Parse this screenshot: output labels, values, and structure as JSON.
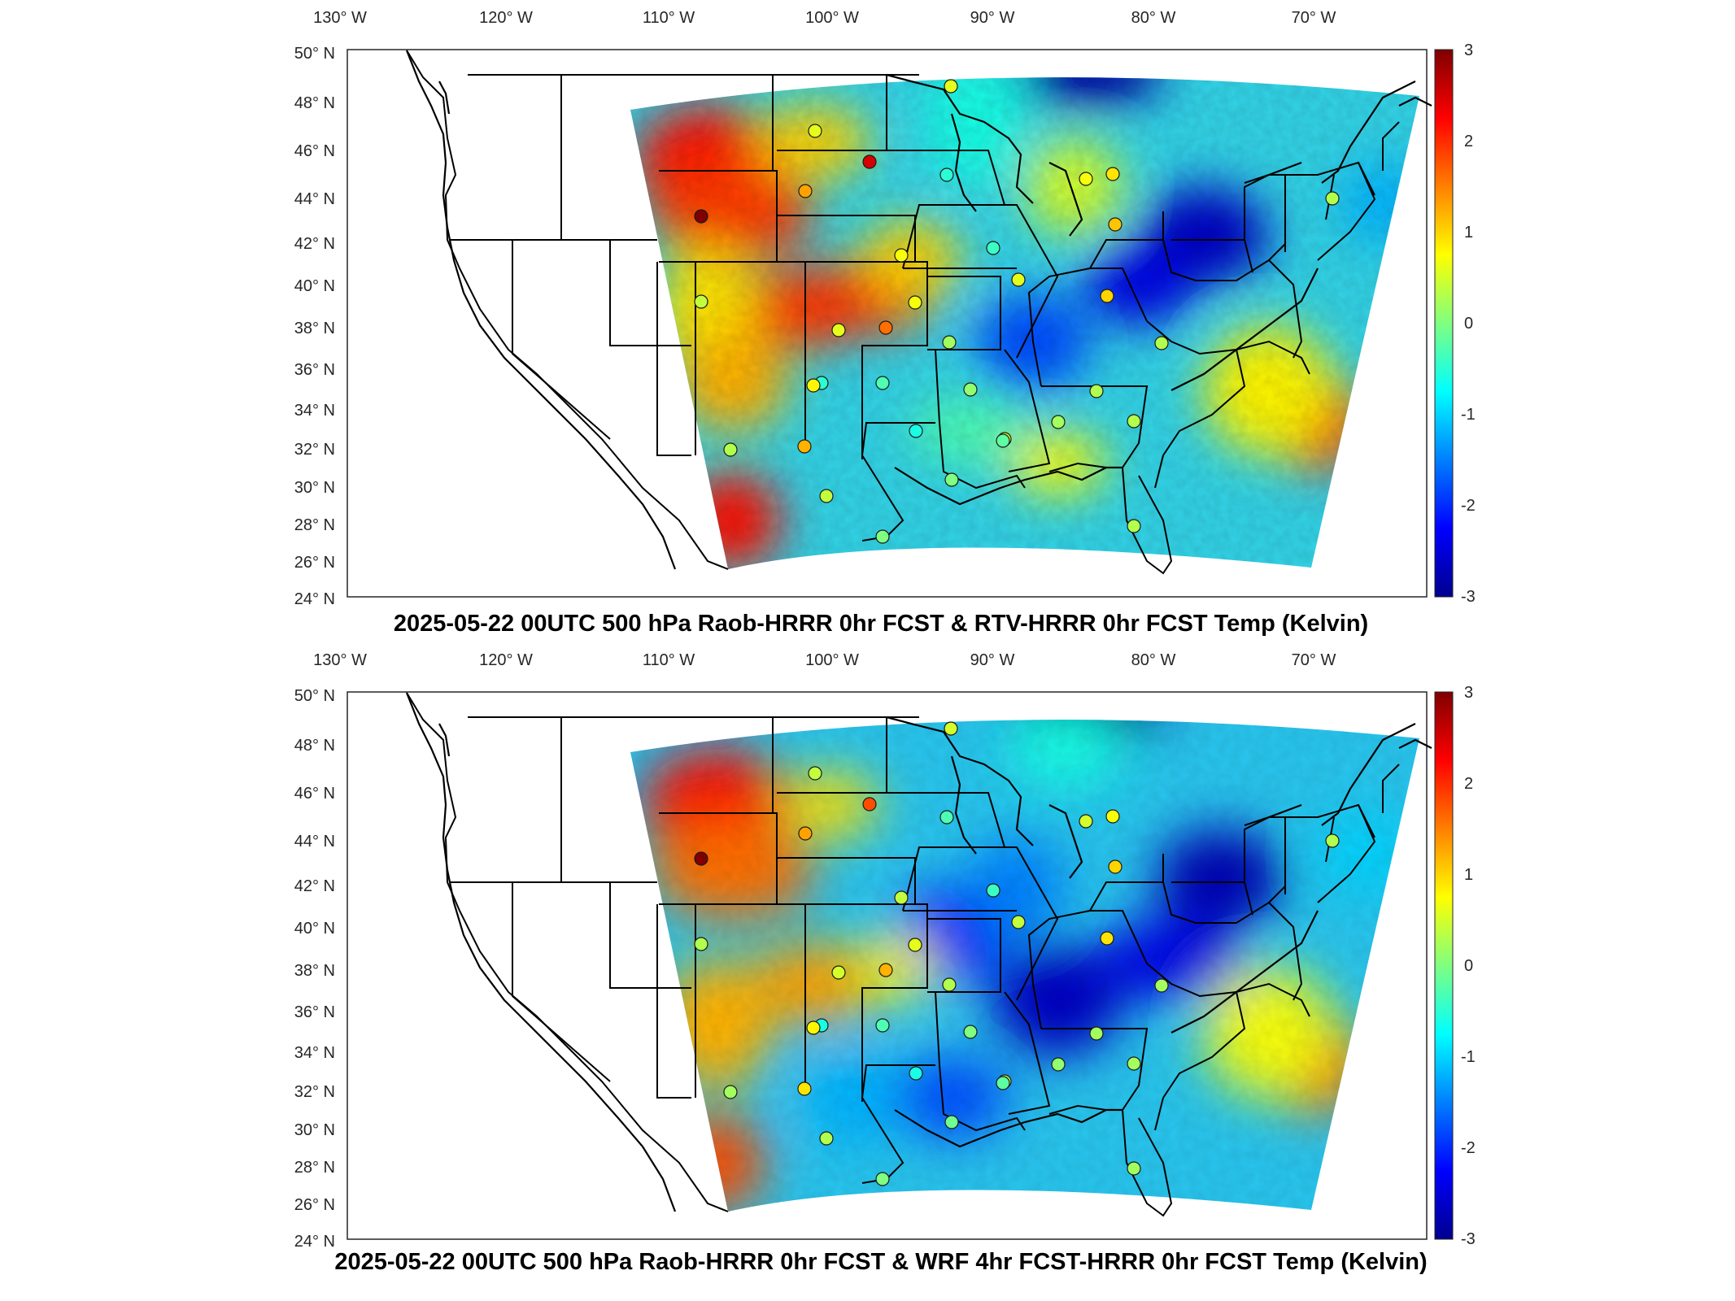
{
  "panels": [
    {
      "title": "2025-05-22 00UTC 500 hPa Raob-HRRR 0hr FCST & RTV-HRRR 0hr FCST Temp (Kelvin)",
      "variant": "rtv"
    },
    {
      "title": "2025-05-22 00UTC 500 hPa Raob-HRRR 0hr FCST & WRF 4hr FCST-HRRR 0hr FCST Temp (Kelvin)",
      "variant": "wrf"
    }
  ],
  "lon_labels": [
    "130° W",
    "120° W",
    "110° W",
    "100° W",
    "90° W",
    "80° W",
    "70° W"
  ],
  "lat_labels": [
    "50° N",
    "48° N",
    "46° N",
    "44° N",
    "42° N",
    "40° N",
    "38° N",
    "36° N",
    "34° N",
    "32° N",
    "30° N",
    "28° N",
    "26° N",
    "24° N"
  ],
  "colorbar": {
    "ticks": [
      "3",
      "2",
      "1",
      "0",
      "-1",
      "-2",
      "-3"
    ],
    "range": [
      -3,
      3
    ],
    "colormap": "jet"
  },
  "raob_station_values": {
    "rtv": [
      0.6,
      1.3,
      2.5,
      -0.5,
      0.7,
      0.9,
      1.1,
      0.3,
      0.7,
      -0.4,
      0.6,
      1.0,
      0.7,
      0.6,
      1.6,
      0.2,
      0.3,
      0.1,
      -0.3,
      -0.6,
      -0.5,
      0.8,
      0.3,
      0.2,
      0.6,
      1.2,
      0.4,
      0.0,
      0.0,
      0.3,
      -0.2,
      0.3,
      0.4,
      0.3,
      3.0,
      0.6
    ],
    "wrf": [
      0.5,
      1.3,
      1.8,
      -0.3,
      0.5,
      0.7,
      1.0,
      0.3,
      0.4,
      -0.4,
      0.4,
      0.9,
      0.6,
      0.5,
      1.2,
      0.3,
      0.2,
      0.0,
      -0.3,
      -0.6,
      -0.6,
      0.8,
      0.2,
      0.1,
      0.4,
      0.9,
      0.3,
      0.0,
      -0.1,
      0.2,
      -0.2,
      0.2,
      0.3,
      0.2,
      3.0,
      0.4
    ]
  }
}
